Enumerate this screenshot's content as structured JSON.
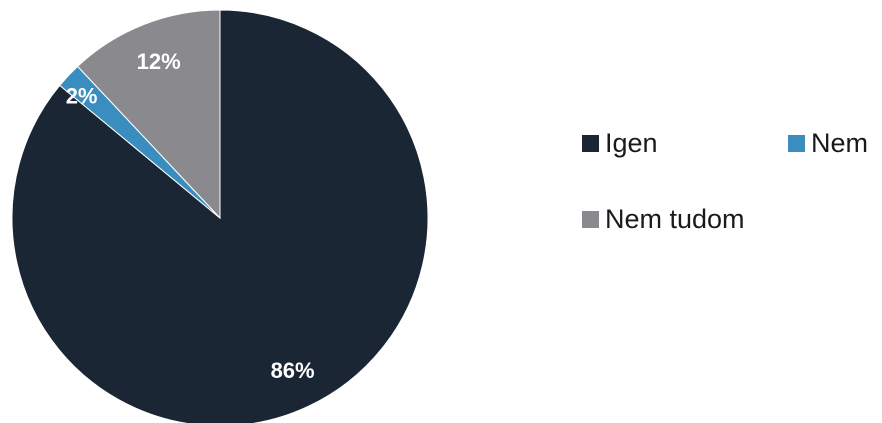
{
  "chart_data": {
    "type": "pie",
    "start_angle_deg": 0,
    "direction": "clockwise",
    "slices": [
      {
        "label": "Igen",
        "value": 86,
        "data_label": "86%",
        "color": "#1a2633"
      },
      {
        "label": "Nem",
        "value": 2,
        "data_label": "2%",
        "color": "#3a8dbf"
      },
      {
        "label": "Nem tudom",
        "value": 12,
        "data_label": "12%",
        "color": "#8a8a8e"
      }
    ],
    "legend": {
      "placement": "right",
      "entries": [
        "Igen",
        "Nem",
        "Nem tudom"
      ]
    }
  }
}
